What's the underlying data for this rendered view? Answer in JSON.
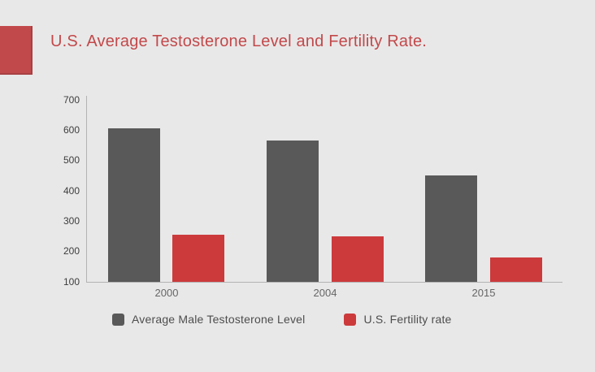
{
  "page": {
    "background_color": "#e9e8e8"
  },
  "header": {
    "title": "U.S. Average Testosterone Level and Fertility Rate.",
    "title_color": "#c2494b",
    "accent_square_color": "#c2494b"
  },
  "chart_data": {
    "type": "bar",
    "title": "U.S. Average Testosterone Level and Fertility Rate.",
    "categories": [
      "2000",
      "2004",
      "2015"
    ],
    "series": [
      {
        "name": "Average Male Testosterone Level",
        "color": "#595959",
        "values": [
          605,
          565,
          450
        ]
      },
      {
        "name": "U.S. Fertility rate",
        "color": "#cc3a3c",
        "values": [
          255,
          248,
          180
        ]
      }
    ],
    "xlabel": "",
    "ylabel": "",
    "ylim": [
      100,
      700
    ],
    "yticks": [
      "700",
      "600",
      "500",
      "400",
      "300",
      "200",
      "100"
    ],
    "grid": false,
    "legend_position": "bottom",
    "axis_color": "#b3b3b3"
  }
}
